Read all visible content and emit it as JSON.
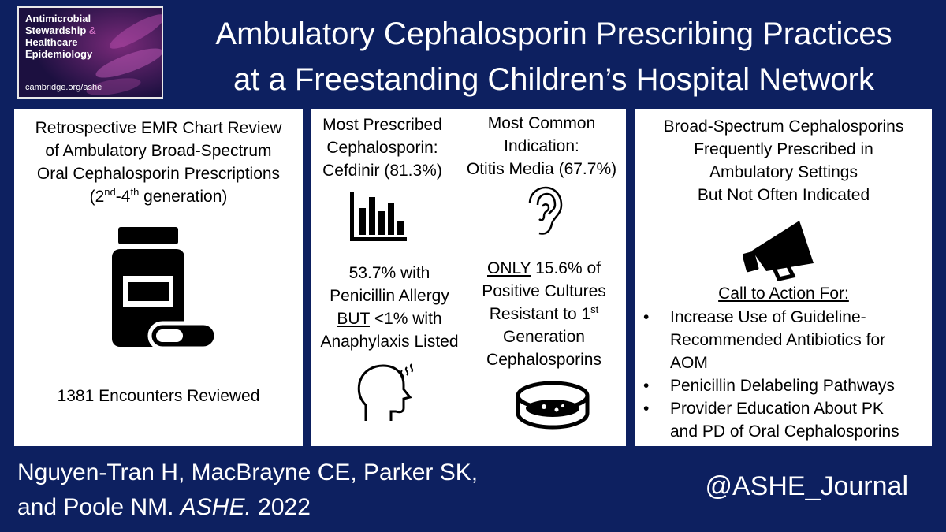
{
  "logo": {
    "line1": "Antimicrobial",
    "line2a": "Stewardship",
    "line2b": " &",
    "line3": "Healthcare",
    "line4": "Epidemiology",
    "url": "cambridge.org/ashe"
  },
  "title": {
    "line1": "Ambulatory Cephalosporin Prescribing Practices",
    "line2": "at a Freestanding Children’s Hospital Network"
  },
  "panel1": {
    "line1": "Retrospective EMR Chart Review",
    "line2": "of Ambulatory Broad-Spectrum",
    "line3": "Oral Cephalosporin Prescriptions",
    "gen_open": "(2",
    "gen_sup1": "nd",
    "gen_dash": "-4",
    "gen_sup2": "th",
    "gen_close": " generation)",
    "encounters": "1381 Encounters Reviewed",
    "icon": "pill-bottle-icon"
  },
  "panel2": {
    "prescribed": [
      "Most Prescribed",
      "Cephalosporin:",
      "Cefdinir (81.3%)"
    ],
    "indication": [
      "Most Common",
      "Indication:",
      "Otitis Media (67.7%)"
    ],
    "allergy": {
      "line1": "53.7% with",
      "line2": "Penicillin Allergy",
      "but": "BUT",
      "line3_rest": " <1% with",
      "line4": "Anaphylaxis Listed"
    },
    "cultures": {
      "only": "ONLY",
      "line1_rest": " 15.6% of",
      "line2": "Positive Cultures",
      "line3": "Resistant to 1",
      "line3_sup": "st",
      "line4": "Generation",
      "line5": "Cephalosporins"
    },
    "icons": [
      "bar-chart-icon",
      "ear-icon",
      "head-icon",
      "petri-dish-icon"
    ]
  },
  "panel3": {
    "heading": [
      "Broad-Spectrum Cephalosporins",
      "Frequently Prescribed in",
      "Ambulatory Settings",
      "But Not Often Indicated"
    ],
    "cta": "Call to Action For:",
    "actions": [
      [
        "Increase Use of Guideline-",
        "Recommended Antibiotics for",
        "AOM"
      ],
      [
        "Penicillin Delabeling Pathways"
      ],
      [
        "Provider Education About PK",
        "and PD of Oral Cephalosporins"
      ]
    ],
    "icon": "megaphone-icon"
  },
  "footer": {
    "authors_line1": "Nguyen-Tran H,  MacBrayne CE, Parker SK,",
    "authors_line2a": "and Poole NM. ",
    "journal": "ASHE.",
    "year": " 2022",
    "handle": "@ASHE_Journal"
  },
  "colors": {
    "background": "#0d2060",
    "panel": "#ffffff",
    "logo_accent": "#e07ad0"
  }
}
